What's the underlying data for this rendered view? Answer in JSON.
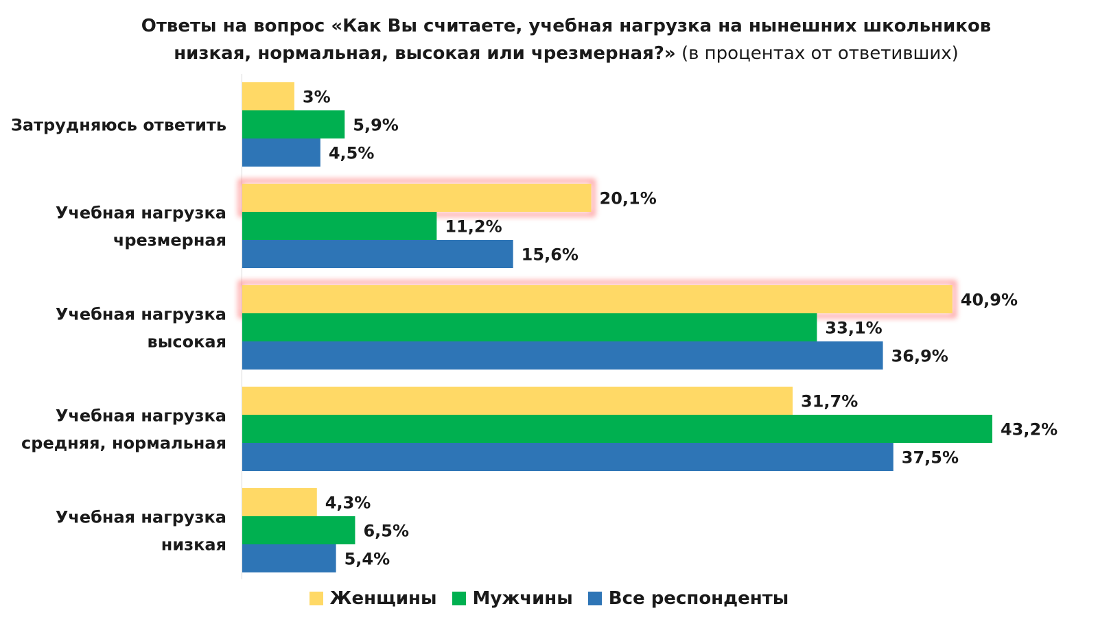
{
  "chart_data": {
    "type": "bar",
    "orientation": "horizontal",
    "title_bold": "Ответы на вопрос «Как Вы считаете, учебная нагрузка на нынешних школьников низкая, нормальная, высокая или чрезмерная?»",
    "title_normal": "(в процентах от ответивших)",
    "categories": [
      [
        "Затрудняюсь ответить"
      ],
      [
        "Учебная нагрузка",
        "чрезмерная"
      ],
      [
        "Учебная нагрузка",
        "высокая"
      ],
      [
        "Учебная нагрузка",
        "средняя, нормальная"
      ],
      [
        "Учебная нагрузка",
        "низкая"
      ]
    ],
    "series": [
      {
        "name": "Женщины",
        "color": "#FFD966",
        "values": [
          3,
          20.1,
          40.9,
          31.7,
          4.3
        ],
        "labels": [
          "3%",
          "20,1%",
          "40,9%",
          "31,7%",
          "4,3%"
        ]
      },
      {
        "name": "Мужчины",
        "color": "#00B050",
        "values": [
          5.9,
          11.2,
          33.1,
          43.2,
          6.5
        ],
        "labels": [
          "5,9%",
          "11,2%",
          "33,1%",
          "43,2%",
          "6,5%"
        ]
      },
      {
        "name": "Все респонденты",
        "color": "#2E75B6",
        "values": [
          4.5,
          15.6,
          36.9,
          37.5,
          5.4
        ],
        "labels": [
          "4,5%",
          "15,6%",
          "36,9%",
          "37,5%",
          "5,4%"
        ]
      }
    ],
    "highlighted": [
      {
        "series": 0,
        "category": 1
      },
      {
        "series": 0,
        "category": 2
      }
    ],
    "highlight_color": "#FF6B6B",
    "legend_position": "bottom",
    "grid": false
  }
}
